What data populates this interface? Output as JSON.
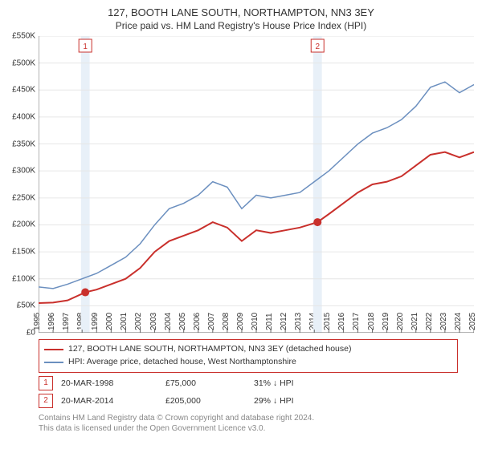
{
  "title": "127, BOOTH LANE SOUTH, NORTHAMPTON, NN3 3EY",
  "subtitle": "Price paid vs. HM Land Registry's House Price Index (HPI)",
  "chart": {
    "type": "line",
    "background_color": "#ffffff",
    "grid_color": "#e6e6e6",
    "axis_color": "#666666",
    "title_fontsize": 13,
    "label_fontsize": 10,
    "ylim": [
      0,
      550000
    ],
    "ytick_step": 50000,
    "ytick_labels": [
      "£0",
      "£50K",
      "£100K",
      "£150K",
      "£200K",
      "£250K",
      "£300K",
      "£350K",
      "£400K",
      "£450K",
      "£500K",
      "£550K"
    ],
    "xlim": [
      1995,
      2025
    ],
    "xtick_step": 1,
    "xtick_labels": [
      "1995",
      "1996",
      "1997",
      "1998",
      "1999",
      "2000",
      "2001",
      "2002",
      "2003",
      "2004",
      "2005",
      "2006",
      "2007",
      "2008",
      "2009",
      "2010",
      "2011",
      "2012",
      "2013",
      "2014",
      "2015",
      "2016",
      "2017",
      "2018",
      "2019",
      "2020",
      "2021",
      "2022",
      "2023",
      "2024",
      "2025"
    ],
    "vmarker_band_color": "#e8f0f8",
    "vmarkers": [
      {
        "x": 1998.22,
        "label": "1",
        "border_color": "#c9302c",
        "text_color": "#c9302c"
      },
      {
        "x": 2014.22,
        "label": "2",
        "border_color": "#c9302c",
        "text_color": "#c9302c"
      }
    ],
    "series": [
      {
        "name": "price_paid",
        "label": "127, BOOTH LANE SOUTH, NORTHAMPTON, NN3 3EY (detached house)",
        "color": "#c9302c",
        "line_width": 2,
        "points": [
          [
            1995,
            55000
          ],
          [
            1996,
            56000
          ],
          [
            1997,
            60000
          ],
          [
            1998.22,
            75000
          ],
          [
            1999,
            80000
          ],
          [
            2000,
            90000
          ],
          [
            2001,
            100000
          ],
          [
            2002,
            120000
          ],
          [
            2003,
            150000
          ],
          [
            2004,
            170000
          ],
          [
            2005,
            180000
          ],
          [
            2006,
            190000
          ],
          [
            2007,
            205000
          ],
          [
            2008,
            195000
          ],
          [
            2009,
            170000
          ],
          [
            2010,
            190000
          ],
          [
            2011,
            185000
          ],
          [
            2012,
            190000
          ],
          [
            2013,
            195000
          ],
          [
            2014.22,
            205000
          ],
          [
            2015,
            220000
          ],
          [
            2016,
            240000
          ],
          [
            2017,
            260000
          ],
          [
            2018,
            275000
          ],
          [
            2019,
            280000
          ],
          [
            2020,
            290000
          ],
          [
            2021,
            310000
          ],
          [
            2022,
            330000
          ],
          [
            2023,
            335000
          ],
          [
            2024,
            325000
          ],
          [
            2025,
            335000
          ]
        ],
        "markers": [
          {
            "x": 1998.22,
            "y": 75000,
            "color": "#c9302c",
            "size": 5
          },
          {
            "x": 2014.22,
            "y": 205000,
            "color": "#c9302c",
            "size": 5
          }
        ]
      },
      {
        "name": "hpi",
        "label": "HPI: Average price, detached house, West Northamptonshire",
        "color": "#6b8fbf",
        "line_width": 1.5,
        "points": [
          [
            1995,
            85000
          ],
          [
            1996,
            82000
          ],
          [
            1997,
            90000
          ],
          [
            1998,
            100000
          ],
          [
            1999,
            110000
          ],
          [
            2000,
            125000
          ],
          [
            2001,
            140000
          ],
          [
            2002,
            165000
          ],
          [
            2003,
            200000
          ],
          [
            2004,
            230000
          ],
          [
            2005,
            240000
          ],
          [
            2006,
            255000
          ],
          [
            2007,
            280000
          ],
          [
            2008,
            270000
          ],
          [
            2009,
            230000
          ],
          [
            2010,
            255000
          ],
          [
            2011,
            250000
          ],
          [
            2012,
            255000
          ],
          [
            2013,
            260000
          ],
          [
            2014,
            280000
          ],
          [
            2015,
            300000
          ],
          [
            2016,
            325000
          ],
          [
            2017,
            350000
          ],
          [
            2018,
            370000
          ],
          [
            2019,
            380000
          ],
          [
            2020,
            395000
          ],
          [
            2021,
            420000
          ],
          [
            2022,
            455000
          ],
          [
            2023,
            465000
          ],
          [
            2024,
            445000
          ],
          [
            2025,
            460000
          ]
        ]
      }
    ]
  },
  "legend": {
    "border_color": "#c9302c",
    "rows": [
      {
        "swatch_color": "#c9302c",
        "label": "127, BOOTH LANE SOUTH, NORTHAMPTON, NN3 3EY (detached house)"
      },
      {
        "swatch_color": "#6b8fbf",
        "label": "HPI: Average price, detached house, West Northamptonshire"
      }
    ]
  },
  "marker_rows": [
    {
      "badge": "1",
      "date": "20-MAR-1998",
      "price": "£75,000",
      "delta": "31% ↓ HPI"
    },
    {
      "badge": "2",
      "date": "20-MAR-2014",
      "price": "£205,000",
      "delta": "29% ↓ HPI"
    }
  ],
  "attribution": {
    "line1": "Contains HM Land Registry data © Crown copyright and database right 2024.",
    "line2": "This data is licensed under the Open Government Licence v3.0."
  }
}
